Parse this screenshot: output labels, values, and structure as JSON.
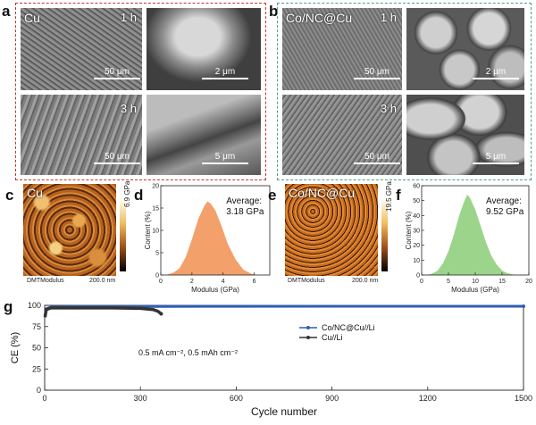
{
  "panels": {
    "a": "a",
    "b": "b",
    "c": "c",
    "d": "d",
    "e": "e",
    "f": "f",
    "g": "g"
  },
  "sem_a": {
    "label": "Cu",
    "t1": "1 h",
    "t3": "3 h",
    "s_tl": "50 μm",
    "s_tr": "2 μm",
    "s_bl": "50 μm",
    "s_br": "5 μm"
  },
  "sem_b": {
    "label": "Co/NC@Cu",
    "t1": "1 h",
    "t3": "3 h",
    "s_tl": "50 μm",
    "s_tr": "2 μm",
    "s_bl": "50 μm",
    "s_br": "5 μm"
  },
  "afm_c": {
    "label": "Cu",
    "cbar_max": "6.9 GPa",
    "mode": "DMTModulus",
    "scale": "200.0 nm"
  },
  "afm_e": {
    "label": "Co/NC@Cu",
    "cbar_max": "19.5 GPa",
    "mode": "DMTModulus",
    "scale": "200.0 nm"
  },
  "colors": {
    "cu_box": "#c0392b",
    "conc_box": "#4aa37a",
    "hist_d": "#f4a06b",
    "hist_f": "#9bd48a",
    "conc_line": "#2f5fb3",
    "cu_line": "#333333"
  },
  "chart_data": [
    {
      "type": "area",
      "panel": "d",
      "xlabel": "Modulus (GPa)",
      "ylabel": "Content (%)",
      "xlim": [
        0,
        7
      ],
      "ylim": [
        0,
        20
      ],
      "xticks": [
        "0",
        "2",
        "4",
        "6"
      ],
      "yticks": [
        "0",
        "5",
        "10",
        "15",
        "20"
      ],
      "annotation_title": "Average:",
      "annotation_value": "3.18 GPa",
      "x": [
        0.3,
        0.8,
        1.2,
        1.6,
        2.0,
        2.4,
        2.8,
        3.0,
        3.2,
        3.5,
        3.9,
        4.3,
        4.8,
        5.3,
        5.8,
        6.2
      ],
      "y": [
        0,
        0.5,
        1.5,
        4,
        8,
        12.5,
        15.5,
        16.5,
        16,
        14.5,
        11,
        7,
        3.5,
        1.2,
        0.3,
        0
      ]
    },
    {
      "type": "area",
      "panel": "f",
      "xlabel": "Modulus (GPa)",
      "ylabel": "Content (%)",
      "xlim": [
        0,
        20
      ],
      "ylim": [
        0,
        60
      ],
      "xticks": [
        "0",
        "5",
        "10",
        "15",
        "20"
      ],
      "yticks": [
        "0",
        "10",
        "20",
        "30",
        "40",
        "50",
        "60"
      ],
      "annotation_title": "Average:",
      "annotation_value": "9.52 GPa",
      "x": [
        1,
        2,
        3,
        4,
        5,
        6,
        7,
        8,
        8.5,
        9,
        10,
        11,
        12,
        13,
        14,
        15,
        16,
        17,
        18
      ],
      "y": [
        0,
        1,
        3,
        8,
        16,
        27,
        40,
        50,
        54,
        52,
        44,
        33,
        22,
        13,
        7,
        3,
        1.2,
        0.4,
        0
      ]
    },
    {
      "type": "line",
      "panel": "g",
      "xlabel": "Cycle number",
      "ylabel": "CE (%)",
      "xlim": [
        0,
        1500
      ],
      "ylim": [
        0,
        100
      ],
      "xticks": [
        "0",
        "300",
        "600",
        "900",
        "1200",
        "1500"
      ],
      "yticks": [
        "0",
        "25",
        "50",
        "75",
        "100"
      ],
      "annotation": "0.5 mA cm⁻², 0.5 mAh cm⁻²",
      "series": [
        {
          "name": "Co/NC@Cu//Li",
          "x": [
            1,
            5,
            20,
            100,
            500,
            1000,
            1500
          ],
          "y": [
            88,
            96,
            98,
            98.5,
            98.8,
            98.9,
            99
          ]
        },
        {
          "name": "Cu//Li",
          "x": [
            1,
            5,
            20,
            100,
            200,
            300,
            340,
            355,
            365
          ],
          "y": [
            86,
            95,
            97,
            97,
            97,
            96.5,
            95,
            93,
            90
          ]
        }
      ]
    }
  ]
}
